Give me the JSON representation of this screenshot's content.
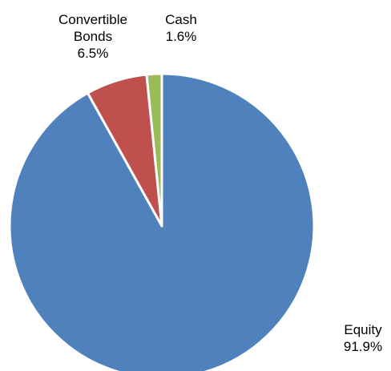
{
  "chart_data": {
    "type": "pie",
    "title": "",
    "slices": [
      {
        "label_lines": [
          "Equity"
        ],
        "percent_label": "91.9%",
        "value": 91.9,
        "color": "#4F81BD"
      },
      {
        "label_lines": [
          "Convertible",
          "Bonds"
        ],
        "percent_label": "6.5%",
        "value": 6.5,
        "color": "#C0504D"
      },
      {
        "label_lines": [
          "Cash"
        ],
        "percent_label": "1.6%",
        "value": 1.6,
        "color": "#9BBB59"
      }
    ],
    "start_angle_deg": 0,
    "direction": "clockwise",
    "legend": "none"
  }
}
